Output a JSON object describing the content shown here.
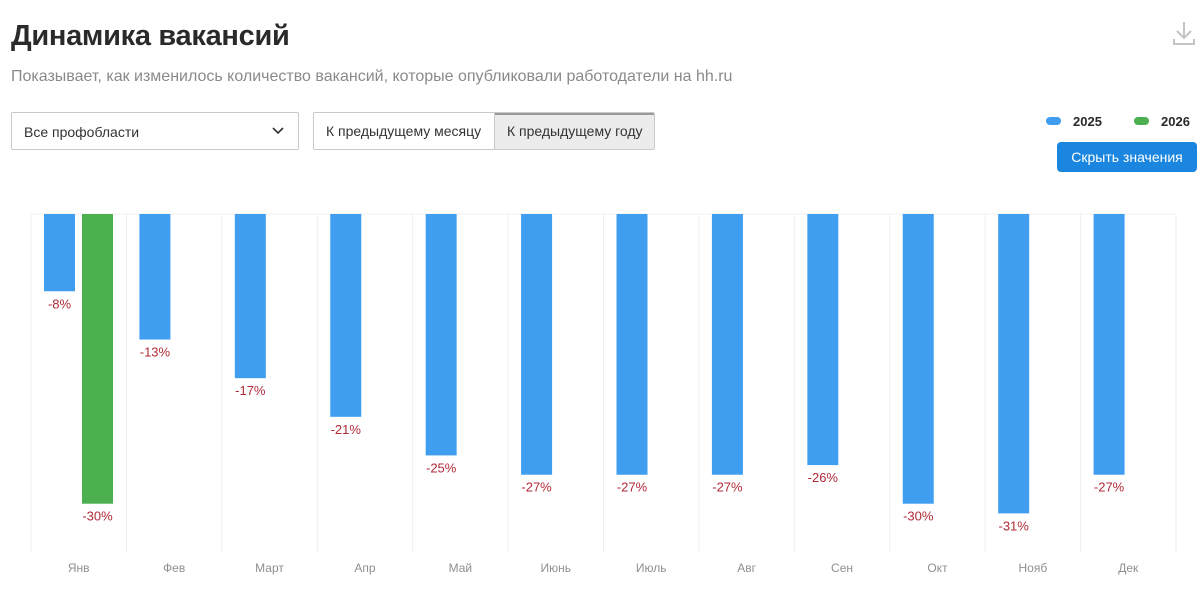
{
  "header": {
    "title": "Динамика вакансий",
    "subtitle": "Показывает, как изменилось количество вакансий, которые опубликовали работодатели на hh.ru"
  },
  "filters": {
    "profarea": {
      "value": "Все профобласти"
    },
    "compare": {
      "options": [
        "К предыдущему месяцу",
        "К предыдущему году"
      ],
      "selected": "К предыдущему году"
    }
  },
  "actions": {
    "hide_values_label": "Скрыть значения"
  },
  "icons": {
    "download": "download-icon",
    "dropdown": "chevron-down-icon"
  },
  "colors": {
    "series_2025": "#409ef0",
    "series_2026": "#4cb050",
    "value_label": "#b02a37",
    "button": "#1a86e0"
  },
  "chart_data": {
    "type": "bar",
    "title": "",
    "xlabel": "",
    "ylabel": "",
    "unit": "%",
    "categories": [
      "Янв",
      "Фев",
      "Март",
      "Апр",
      "Май",
      "Июнь",
      "Июль",
      "Авг",
      "Сен",
      "Окт",
      "Нояб",
      "Дек"
    ],
    "series": [
      {
        "name": "2025",
        "color": "#409ef0",
        "values": [
          -8,
          -13,
          -17,
          -21,
          -25,
          -27,
          -27,
          -27,
          -26,
          -30,
          -31,
          -27
        ]
      },
      {
        "name": "2026",
        "color": "#4cb050",
        "values": [
          -30,
          null,
          null,
          null,
          null,
          null,
          null,
          null,
          null,
          null,
          null,
          null
        ]
      }
    ],
    "ylim": [
      -35,
      0
    ],
    "grid": "vertical category separators",
    "legend": "top-right",
    "data_labels": true
  }
}
